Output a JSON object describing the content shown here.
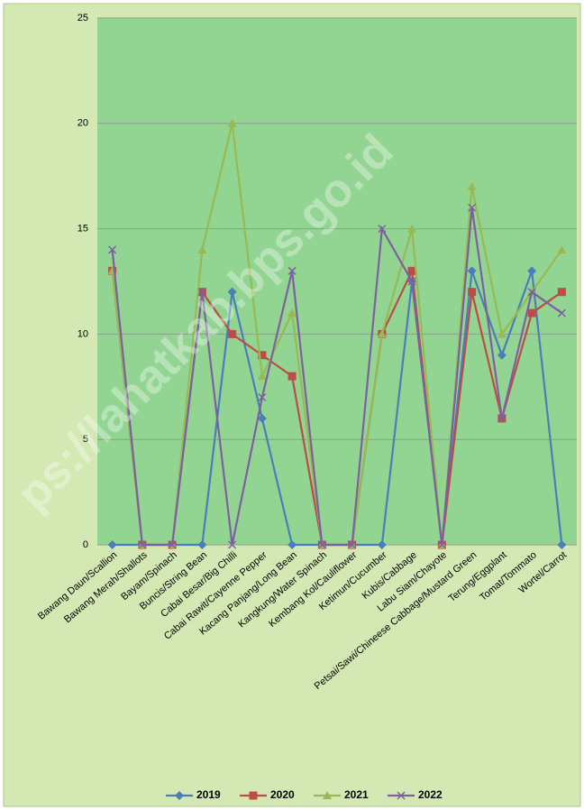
{
  "chart_data": {
    "type": "line",
    "categories": [
      "Bawang Daun/Scallion",
      "Bawang Merah/Shallots",
      "Bayam/Spinach",
      "Buncis/String Bean",
      "Cabai Besar/Big Chilli",
      "Cabai Rawit/Cayenne Pepper",
      "Kacang Panjang/Long Bean",
      "Kangkung/Water Spinach",
      "Kembang Kol/Cauliflower",
      "Ketimun/Cucumber",
      "Kubis/Cabbage",
      "Labu Siam/Chayote",
      "Petsai/Sawi/Chineese Cabbage/Mustard Green",
      "Terung/Eggplant",
      "Tomat/Tommato",
      "Wortel/Carrot"
    ],
    "series": [
      {
        "name": "2019",
        "color": "#4a7ebb",
        "marker": "diamond",
        "values": [
          0,
          0,
          0,
          0,
          12,
          6,
          0,
          0,
          0,
          0,
          12.5,
          0,
          13,
          9,
          13,
          0
        ]
      },
      {
        "name": "2020",
        "color": "#be4b48",
        "marker": "square",
        "values": [
          13,
          0,
          0,
          12,
          10,
          9,
          8,
          0,
          0,
          10,
          13,
          0,
          12,
          6,
          11,
          12
        ]
      },
      {
        "name": "2021",
        "color": "#98b954",
        "marker": "triangle",
        "values": [
          13,
          0,
          0,
          14,
          20,
          8,
          11,
          0,
          0,
          10,
          15,
          0,
          17,
          10,
          12,
          14
        ]
      },
      {
        "name": "2022",
        "color": "#7d60a0",
        "marker": "x",
        "values": [
          14,
          0,
          0,
          12,
          0,
          7,
          13,
          0,
          0,
          15,
          12.5,
          0,
          16,
          6,
          12,
          11
        ]
      }
    ],
    "ylim": [
      0,
      25
    ],
    "yticks": [
      0,
      5,
      10,
      15,
      20,
      25
    ],
    "grid": true,
    "legend": "bottom",
    "watermark": "ps://lahatkab.bps.go.id"
  }
}
